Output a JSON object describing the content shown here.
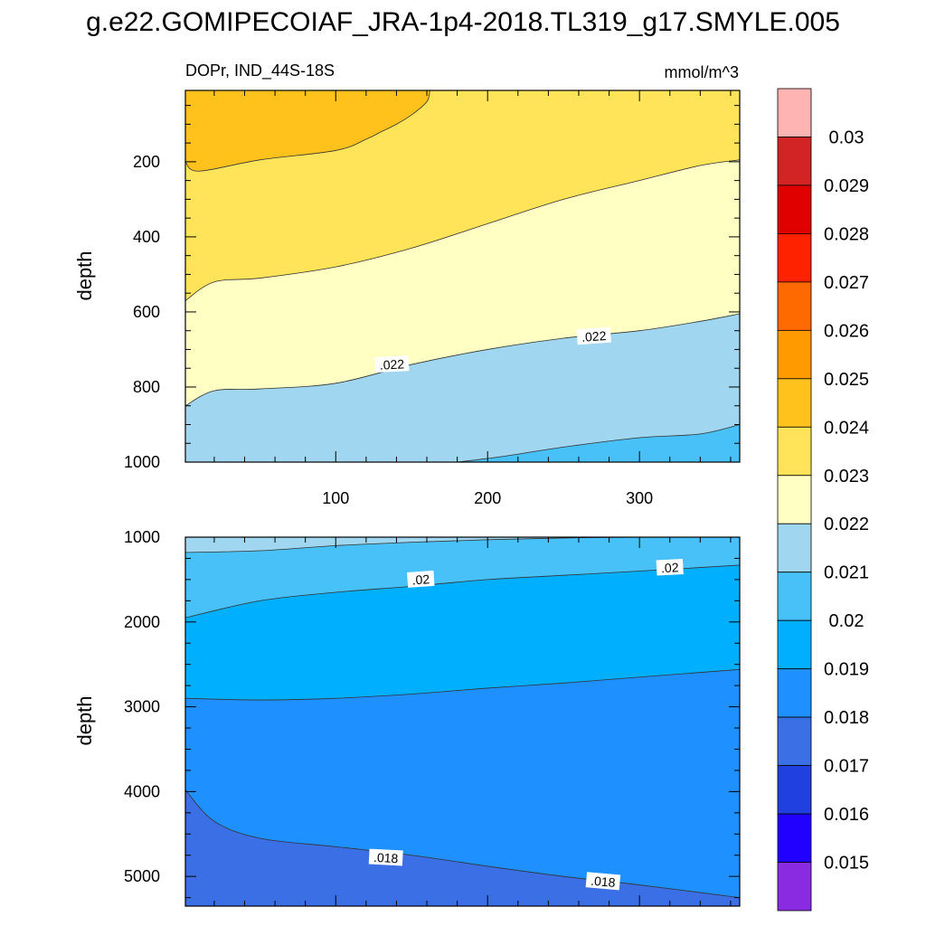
{
  "title": "g.e22.GOMIPECOIAF_JRA-1p4-2018.TL319_g17.SMYLE.005",
  "colors": {
    "c015": "#8a2be2",
    "c016": "#2200ff",
    "c017": "#2040e0",
    "c018": "#3a6fe6",
    "c019": "#1e90ff",
    "c020": "#00b0ff",
    "c021": "#48c0f8",
    "c022": "#a0d6f0",
    "c023": "#ffffc4",
    "c024": "#ffe45a",
    "c025": "#ffc21c",
    "c026": "#ff9a00",
    "c027": "#ff6a00",
    "c028": "#ff2200",
    "c029": "#e00000",
    "c030": "#d22424",
    "c031": "#ffb4b4",
    "line": "#333333"
  },
  "chart_data": [
    {
      "type": "contour",
      "subtitle_left": "DOPr, IND_44S-18S",
      "subtitle_right": "mmol/m^3",
      "ylabel": "depth",
      "xlim": [
        1,
        366
      ],
      "ylim": [
        1000,
        10
      ],
      "xticks": [
        100,
        200,
        300
      ],
      "xtick_labels": [
        "100",
        "200",
        "300"
      ],
      "yticks": [
        200,
        400,
        600,
        800,
        1000
      ],
      "ytick_labels": [
        "200",
        "400",
        "600",
        "800",
        "1000"
      ],
      "contours": [
        {
          "level": 0.024,
          "points": [
            [
              1,
              200
            ],
            [
              10,
              225
            ],
            [
              50,
              195
            ],
            [
              100,
              170
            ],
            [
              120,
              140
            ],
            [
              130,
              120
            ],
            [
              140,
              100
            ],
            [
              150,
              75
            ],
            [
              160,
              40
            ],
            [
              162,
              10
            ]
          ]
        },
        {
          "level": 0.023,
          "points": [
            [
              1,
              570
            ],
            [
              20,
              520
            ],
            [
              50,
              510
            ],
            [
              100,
              480
            ],
            [
              150,
              430
            ],
            [
              200,
              365
            ],
            [
              250,
              300
            ],
            [
              300,
              250
            ],
            [
              340,
              210
            ],
            [
              366,
              195
            ]
          ]
        },
        {
          "level": 0.022,
          "points": [
            [
              1,
              850
            ],
            [
              20,
              810
            ],
            [
              50,
              805
            ],
            [
              100,
              790
            ],
            [
              150,
              740
            ],
            [
              200,
              700
            ],
            [
              250,
              670
            ],
            [
              300,
              650
            ],
            [
              340,
              625
            ],
            [
              366,
              605
            ]
          ]
        },
        {
          "level": 0.021,
          "points": [
            [
              180,
              1000
            ],
            [
              210,
              985
            ],
            [
              250,
              960
            ],
            [
              300,
              935
            ],
            [
              340,
              925
            ],
            [
              366,
              900
            ]
          ]
        }
      ],
      "contour_labels": [
        {
          "text": ".022",
          "x": 137,
          "y": 740
        },
        {
          "text": ".022",
          "x": 270,
          "y": 665
        }
      ]
    },
    {
      "type": "contour",
      "ylabel": "depth",
      "xlim": [
        1,
        366
      ],
      "ylim": [
        5350,
        1000
      ],
      "xticks": [
        100,
        200,
        300
      ],
      "yticks": [
        1000,
        2000,
        3000,
        4000,
        5000
      ],
      "ytick_labels": [
        "1000",
        "2000",
        "3000",
        "4000",
        "5000"
      ],
      "contours": [
        {
          "level": 0.021,
          "points": [
            [
              1,
              1180
            ],
            [
              50,
              1160
            ],
            [
              100,
              1100
            ],
            [
              150,
              1060
            ],
            [
              200,
              1030
            ],
            [
              250,
              1010
            ],
            [
              300,
              1000
            ]
          ]
        },
        {
          "level": 0.02,
          "points": [
            [
              1,
              1950
            ],
            [
              50,
              1750
            ],
            [
              100,
              1650
            ],
            [
              150,
              1580
            ],
            [
              200,
              1500
            ],
            [
              250,
              1450
            ],
            [
              300,
              1400
            ],
            [
              366,
              1330
            ]
          ]
        },
        {
          "level": 0.019,
          "points": [
            [
              1,
              2900
            ],
            [
              50,
              2920
            ],
            [
              100,
              2900
            ],
            [
              150,
              2850
            ],
            [
              200,
              2780
            ],
            [
              250,
              2720
            ],
            [
              300,
              2650
            ],
            [
              366,
              2560
            ]
          ]
        },
        {
          "level": 0.018,
          "points": [
            [
              1,
              3980
            ],
            [
              20,
              4350
            ],
            [
              50,
              4550
            ],
            [
              100,
              4650
            ],
            [
              150,
              4750
            ],
            [
              200,
              4880
            ],
            [
              250,
              5000
            ],
            [
              300,
              5100
            ],
            [
              366,
              5250
            ]
          ]
        }
      ],
      "contour_labels": [
        {
          "text": ".02",
          "x": 156,
          "y": 1500
        },
        {
          "text": ".02",
          "x": 320,
          "y": 1360
        },
        {
          "text": ".018",
          "x": 133,
          "y": 4780
        },
        {
          "text": ".018",
          "x": 276,
          "y": 5060
        }
      ]
    },
    {
      "type": "colorbar",
      "labels": [
        "0.03",
        "0.029",
        "0.028",
        "0.027",
        "0.026",
        "0.025",
        "0.024",
        "0.023",
        "0.022",
        "0.021",
        "0.02",
        "0.019",
        "0.018",
        "0.017",
        "0.016",
        "0.015"
      ]
    }
  ]
}
